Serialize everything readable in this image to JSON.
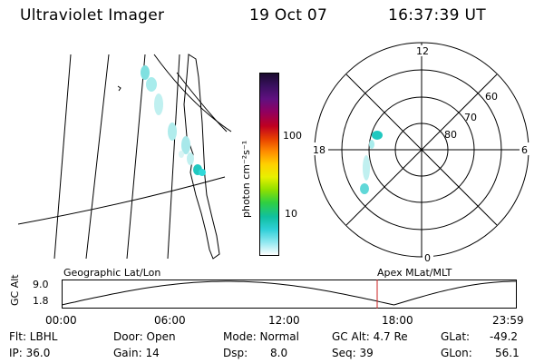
{
  "header": {
    "instrument": "Ultraviolet Imager",
    "date": "19 Oct 07",
    "time": "16:37:39 UT"
  },
  "colorbar": {
    "label": "photon cm⁻²s⁻¹",
    "ticks": [
      "100",
      "10"
    ],
    "colors": [
      "#1a0a2e",
      "#3a1060",
      "#601080",
      "#900060",
      "#c00020",
      "#e84000",
      "#ff8c00",
      "#ffd000",
      "#e8f000",
      "#90e000",
      "#30d040",
      "#10c0a0",
      "#30d0d8",
      "#90e8f0",
      "#ffffff"
    ]
  },
  "polar": {
    "mlt_labels": {
      "top": "12",
      "left": "18",
      "right": "6",
      "bottom": "0"
    },
    "lat_labels": [
      "60",
      "70",
      "80"
    ]
  },
  "timeline": {
    "ylabel": "GC Alt",
    "ymax": "9.0",
    "ymin": "1.8",
    "left_title": "Geographic Lat/Lon",
    "right_title": "Apex MLat/MLT",
    "xticks": [
      "00:00",
      "06:00",
      "12:00",
      "18:00",
      "23:59"
    ],
    "current_time_marker": "16:37:39",
    "marker_color": "#cc2222"
  },
  "footer": {
    "flt": "Flt: LBHL",
    "ip": "IP: 36.0",
    "door": "Door: Open",
    "gain": "Gain: 14",
    "mode": "Mode: Normal",
    "dsp_label": "Dsp:",
    "dsp_value": "8.0",
    "gc_alt": "GC Alt: 4.7 Re",
    "seq": "Seq: 39",
    "glat_label": "GLat:",
    "glat_value": "-49.2",
    "glon_label": "GLon:",
    "glon_value": "56.1"
  }
}
